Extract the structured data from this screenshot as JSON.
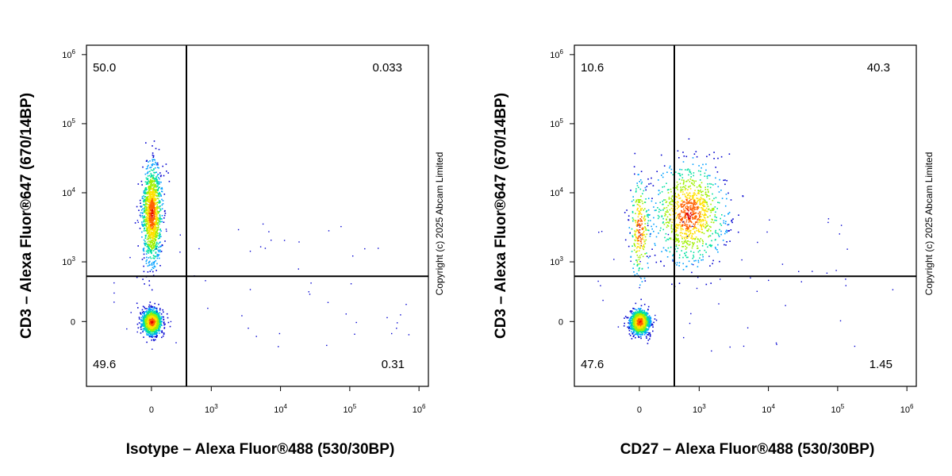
{
  "chart_data": [
    {
      "type": "scatter",
      "style": "flow-cytometry density dot plot with quadrant gates",
      "xlabel": "Isotype – Alexa Fluor®488 (530/30BP)",
      "ylabel": "CD3 – Alexa Fluor®647 (670/14BP)",
      "x_scale": "biexponential",
      "y_scale": "biexponential",
      "x_ticks": [
        "0",
        "10^3",
        "10^4",
        "10^5",
        "10^6"
      ],
      "y_ticks": [
        "0",
        "10^3",
        "10^4",
        "10^5",
        "10^6"
      ],
      "x_gate": 300,
      "y_gate": 500,
      "quadrants": {
        "upper_left": "50.0",
        "upper_right": "0.033",
        "lower_left": "49.6",
        "lower_right": "0.31"
      },
      "populations": [
        {
          "x": 0,
          "y": 5000,
          "fraction": 0.5
        },
        {
          "x": 0,
          "y": 0,
          "fraction": 0.49
        }
      ],
      "colormap": [
        "#0000d0",
        "#00a0ff",
        "#00e0a0",
        "#a0f000",
        "#ffe000",
        "#ff6000",
        "#e00000"
      ],
      "copyright": "Copyright (c) 2025 Abcam Limited"
    },
    {
      "type": "scatter",
      "style": "flow-cytometry density dot plot with quadrant gates",
      "xlabel": "CD27 – Alexa Fluor®488 (530/30BP)",
      "ylabel": "CD3 – Alexa Fluor®647 (670/14BP)",
      "x_scale": "biexponential",
      "y_scale": "biexponential",
      "x_ticks": [
        "0",
        "10^3",
        "10^4",
        "10^5",
        "10^6"
      ],
      "y_ticks": [
        "0",
        "10^3",
        "10^4",
        "10^5",
        "10^6"
      ],
      "x_gate": 300,
      "y_gate": 500,
      "quadrants": {
        "upper_left": "10.6",
        "upper_right": "40.3",
        "lower_left": "47.6",
        "lower_right": "1.45"
      },
      "populations": [
        {
          "x": 600,
          "y": 5000,
          "fraction": 0.4
        },
        {
          "x": 0,
          "y": 3000,
          "fraction": 0.1
        },
        {
          "x": 0,
          "y": 0,
          "fraction": 0.48
        }
      ],
      "colormap": [
        "#0000d0",
        "#00a0ff",
        "#00e0a0",
        "#a0f000",
        "#ffe000",
        "#ff6000",
        "#e00000"
      ],
      "copyright": "Copyright (c) 2025 Abcam Limited"
    }
  ]
}
